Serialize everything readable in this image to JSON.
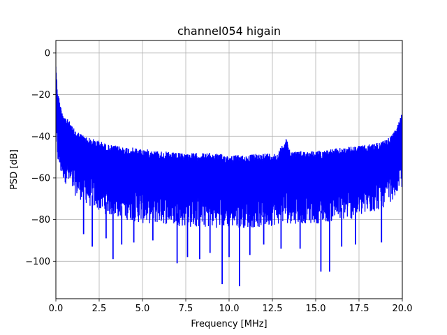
{
  "chart_data": {
    "type": "line",
    "title": "channel054 higain",
    "xlabel": "Frequency [MHz]",
    "ylabel": "PSD [dB]",
    "xlim": [
      0,
      20
    ],
    "ylim": [
      -118,
      6
    ],
    "xticks": [
      0,
      2.5,
      5,
      7.5,
      10,
      12.5,
      15,
      17.5,
      20
    ],
    "xtick_labels": [
      "0.0",
      "2.5",
      "5.0",
      "7.5",
      "10.0",
      "12.5",
      "15.0",
      "17.5",
      "20.0"
    ],
    "yticks": [
      0,
      -20,
      -40,
      -60,
      -80,
      -100
    ],
    "ytick_labels": [
      "0",
      "−20",
      "−40",
      "−60",
      "−80",
      "−100"
    ],
    "grid": true,
    "legend": "none",
    "series": [
      {
        "color": "#0000ff",
        "upper_envelope": {
          "x": [
            0,
            0.05,
            0.1,
            0.2,
            0.3,
            0.5,
            0.8,
            1.0,
            1.5,
            2.0,
            2.5,
            3.0,
            4.0,
            5.0,
            6.0,
            7.0,
            8.0,
            9.0,
            10.0,
            11.0,
            12.0,
            12.8,
            13.0,
            13.2,
            13.3,
            13.4,
            13.6,
            14.0,
            15.0,
            16.0,
            17.0,
            18.0,
            18.5,
            19.0,
            19.3,
            19.6,
            19.8,
            20.0
          ],
          "y": [
            -4,
            -12,
            -18,
            -22,
            -26,
            -30,
            -33,
            -36,
            -39,
            -41,
            -42,
            -44,
            -45,
            -46,
            -47,
            -48,
            -48,
            -48,
            -49,
            -49,
            -48,
            -48,
            -45,
            -42,
            -40,
            -44,
            -47,
            -47,
            -47,
            -46,
            -45,
            -44,
            -43,
            -42,
            -40,
            -37,
            -33,
            -28
          ]
        },
        "lower_envelope": {
          "x": [
            0,
            0.2,
            0.5,
            1.0,
            2.0,
            3.0,
            4.0,
            5.0,
            6.0,
            7.0,
            8.0,
            9.0,
            10.0,
            11.0,
            12.0,
            13.0,
            14.0,
            15.0,
            16.0,
            17.0,
            18.0,
            19.0,
            19.5,
            20.0
          ],
          "y": [
            -48,
            -58,
            -62,
            -68,
            -74,
            -78,
            -80,
            -82,
            -82,
            -83,
            -84,
            -84,
            -84,
            -84,
            -84,
            -82,
            -82,
            -82,
            -81,
            -80,
            -78,
            -74,
            -70,
            -65
          ]
        },
        "dips": [
          {
            "x": 1.6,
            "y": -87
          },
          {
            "x": 2.1,
            "y": -93
          },
          {
            "x": 2.9,
            "y": -89
          },
          {
            "x": 3.3,
            "y": -99
          },
          {
            "x": 3.8,
            "y": -92
          },
          {
            "x": 4.5,
            "y": -91
          },
          {
            "x": 5.6,
            "y": -90
          },
          {
            "x": 7.0,
            "y": -101
          },
          {
            "x": 7.6,
            "y": -98
          },
          {
            "x": 8.3,
            "y": -99
          },
          {
            "x": 8.9,
            "y": -96
          },
          {
            "x": 9.6,
            "y": -111
          },
          {
            "x": 10.0,
            "y": -98
          },
          {
            "x": 10.6,
            "y": -112
          },
          {
            "x": 11.2,
            "y": -97
          },
          {
            "x": 12.0,
            "y": -92
          },
          {
            "x": 13.0,
            "y": -94
          },
          {
            "x": 14.1,
            "y": -94
          },
          {
            "x": 15.3,
            "y": -105
          },
          {
            "x": 15.8,
            "y": -105
          },
          {
            "x": 16.5,
            "y": -93
          },
          {
            "x": 17.3,
            "y": -92
          },
          {
            "x": 18.8,
            "y": -91
          }
        ]
      }
    ]
  }
}
